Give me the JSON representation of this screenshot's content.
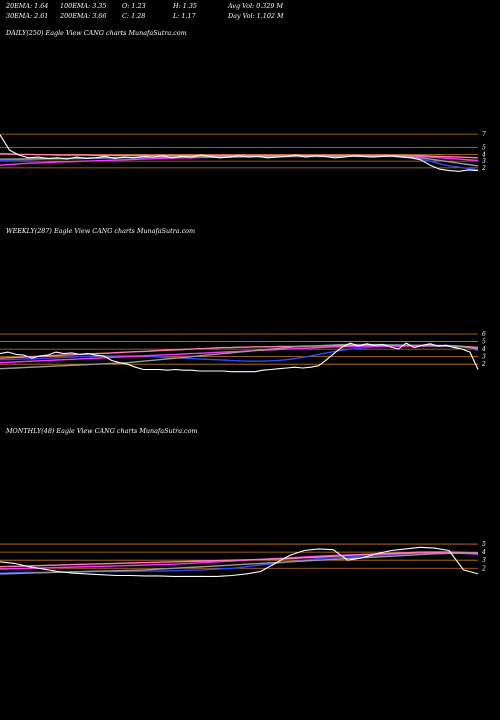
{
  "header": {
    "ema20": "20EMA: 1.64",
    "ema100": "100EMA: 3.35",
    "open": "O: 1.23",
    "high": "H: 1.35",
    "avg_vol": "Avg Vol: 0.329  M",
    "ema30": "30EMA: 2.61",
    "ema200": "200EMA: 3.66",
    "close": "C: 1.28",
    "low": "L: 1.17",
    "day_vol": "Day Vol: 1.102  M"
  },
  "colors": {
    "background": "#000000",
    "price": "#ffffff",
    "ema_blue": "#2b4bff",
    "ema_magenta": "#ff33ff",
    "ema_pink": "#ff7fb0",
    "ema_gray": "#9a9a9a",
    "orange_level": "#c8781e"
  },
  "chart_data": [
    {
      "type": "line",
      "title": "DAILY(250) Eagle   View  CANG charts MunafaSutra.com",
      "ytick_labels": [
        "7",
        "5",
        "4",
        "3",
        "2"
      ],
      "y_ticks": [
        7,
        5,
        4,
        3,
        2
      ],
      "ylim": [
        0.8,
        8.2
      ],
      "levels": [
        7,
        5,
        4,
        3,
        2
      ],
      "series": [
        {
          "key": "price",
          "color": "#ffffff",
          "values": [
            6.9,
            4.6,
            3.9,
            3.5,
            3.6,
            3.4,
            3.5,
            3.3,
            3.6,
            3.4,
            3.5,
            3.7,
            3.4,
            3.6,
            3.5,
            3.7,
            3.6,
            3.8,
            3.5,
            3.7,
            3.6,
            3.9,
            3.7,
            3.5,
            3.6,
            3.8,
            3.6,
            3.7,
            3.5,
            3.6,
            3.7,
            3.9,
            3.6,
            3.8,
            3.7,
            3.5,
            3.6,
            3.8,
            3.7,
            3.6,
            3.7,
            3.8,
            3.6,
            3.5,
            3.2,
            2.4,
            1.8,
            1.6,
            1.5,
            1.7,
            1.6
          ]
        },
        {
          "key": "ema20",
          "color": "#2b4bff",
          "values": [
            3.1,
            3.15,
            3.2,
            3.2,
            3.25,
            3.3,
            3.3,
            3.35,
            3.35,
            3.4,
            3.4,
            3.45,
            3.45,
            3.5,
            3.5,
            3.5,
            3.55,
            3.55,
            3.6,
            3.6,
            3.6,
            3.6,
            3.65,
            3.65,
            3.65,
            3.65,
            3.65,
            3.7,
            3.7,
            3.7,
            3.7,
            3.7,
            3.7,
            3.7,
            3.7,
            3.7,
            3.7,
            3.7,
            3.7,
            3.7,
            3.7,
            3.7,
            3.6,
            3.5,
            3.3,
            3.0,
            2.6,
            2.3,
            2.1,
            1.9,
            1.7
          ]
        },
        {
          "key": "ema_magenta",
          "color": "#ff33ff",
          "values": [
            2.4,
            2.5,
            2.6,
            2.7,
            2.75,
            2.8,
            2.85,
            2.9,
            2.95,
            3.0,
            3.05,
            3.1,
            3.15,
            3.2,
            3.25,
            3.3,
            3.35,
            3.4,
            3.45,
            3.5,
            3.5,
            3.55,
            3.55,
            3.6,
            3.6,
            3.6,
            3.65,
            3.65,
            3.65,
            3.7,
            3.7,
            3.7,
            3.7,
            3.75,
            3.75,
            3.75,
            3.75,
            3.8,
            3.8,
            3.8,
            3.8,
            3.8,
            3.8,
            3.75,
            3.7,
            3.6,
            3.5,
            3.4,
            3.3,
            3.2,
            3.1
          ]
        },
        {
          "key": "ema_pink",
          "color": "#ff7fb0",
          "values": [
            4.1,
            4.05,
            4.0,
            4.0,
            3.95,
            3.95,
            3.9,
            3.9,
            3.9,
            3.9,
            3.85,
            3.85,
            3.85,
            3.85,
            3.85,
            3.85,
            3.85,
            3.85,
            3.85,
            3.85,
            3.85,
            3.85,
            3.85,
            3.85,
            3.85,
            3.85,
            3.85,
            3.85,
            3.85,
            3.85,
            3.85,
            3.85,
            3.85,
            3.85,
            3.85,
            3.85,
            3.85,
            3.85,
            3.85,
            3.85,
            3.85,
            3.85,
            3.85,
            3.8,
            3.8,
            3.75,
            3.7,
            3.65,
            3.6,
            3.55,
            3.5
          ]
        },
        {
          "key": "ema_gray",
          "color": "#9a9a9a",
          "values": [
            3.3,
            3.3,
            3.32,
            3.34,
            3.36,
            3.38,
            3.4,
            3.42,
            3.44,
            3.46,
            3.48,
            3.5,
            3.52,
            3.54,
            3.56,
            3.58,
            3.6,
            3.6,
            3.62,
            3.62,
            3.64,
            3.64,
            3.66,
            3.66,
            3.66,
            3.68,
            3.68,
            3.68,
            3.7,
            3.7,
            3.7,
            3.7,
            3.7,
            3.7,
            3.7,
            3.7,
            3.72,
            3.72,
            3.72,
            3.72,
            3.72,
            3.7,
            3.65,
            3.6,
            3.5,
            3.3,
            3.1,
            2.9,
            2.7,
            2.5,
            2.3
          ]
        }
      ]
    },
    {
      "type": "line",
      "title": "WEEKLY(287) Eagle   View  CANG charts MunafaSutra.com",
      "ytick_labels": [
        "6",
        "5",
        "4",
        "3",
        "2"
      ],
      "y_ticks": [
        6,
        5,
        4,
        3,
        2
      ],
      "ylim": [
        0.3,
        6.8
      ],
      "levels": [
        6,
        5,
        4,
        3,
        2
      ],
      "series": [
        {
          "key": "price",
          "color": "#ffffff",
          "values": [
            3.4,
            3.6,
            3.3,
            3.2,
            2.8,
            3.1,
            3.2,
            3.6,
            3.4,
            3.5,
            3.3,
            3.4,
            3.2,
            3.1,
            2.5,
            2.2,
            2.0,
            1.6,
            1.3,
            1.3,
            1.3,
            1.2,
            1.3,
            1.2,
            1.2,
            1.1,
            1.1,
            1.1,
            1.1,
            1.0,
            1.0,
            1.0,
            1.0,
            1.2,
            1.3,
            1.4,
            1.5,
            1.6,
            1.5,
            1.6,
            1.8,
            2.6,
            3.5,
            4.3,
            4.8,
            4.4,
            4.7,
            4.5,
            4.6,
            4.3,
            4.0,
            4.8,
            4.2,
            4.5,
            4.7,
            4.4,
            4.5,
            4.2,
            4.0,
            3.6,
            1.3
          ]
        },
        {
          "key": "ema20",
          "color": "#2b4bff",
          "values": [
            2.6,
            2.6,
            2.65,
            2.7,
            2.7,
            2.75,
            2.8,
            2.85,
            2.9,
            2.95,
            3.0,
            3.05,
            3.1,
            3.1,
            3.1,
            3.1,
            3.1,
            3.1,
            3.1,
            3.0,
            2.95,
            2.9,
            2.85,
            2.8,
            2.75,
            2.7,
            2.65,
            2.6,
            2.55,
            2.5,
            2.45,
            2.4,
            2.4,
            2.4,
            2.45,
            2.5,
            2.6,
            2.75,
            2.9,
            3.1,
            3.3,
            3.5,
            3.7,
            3.85,
            4.0,
            4.1,
            4.2,
            4.3,
            4.35,
            4.4,
            4.4,
            4.45,
            4.45,
            4.5,
            4.5,
            4.5,
            4.5,
            4.45,
            4.4,
            4.2,
            3.8
          ]
        },
        {
          "key": "ema_magenta",
          "color": "#ff33ff",
          "values": [
            2.2,
            2.25,
            2.3,
            2.35,
            2.4,
            2.45,
            2.5,
            2.55,
            2.6,
            2.65,
            2.7,
            2.75,
            2.8,
            2.85,
            2.9,
            2.95,
            3.0,
            3.05,
            3.1,
            3.15,
            3.2,
            3.25,
            3.3,
            3.35,
            3.4,
            3.45,
            3.5,
            3.55,
            3.6,
            3.65,
            3.7,
            3.75,
            3.8,
            3.85,
            3.9,
            3.95,
            4.0,
            4.05,
            4.1,
            4.15,
            4.2,
            4.25,
            4.3,
            4.3,
            4.35,
            4.35,
            4.4,
            4.4,
            4.4,
            4.4,
            4.4,
            4.4,
            4.4,
            4.4,
            4.4,
            4.4,
            4.4,
            4.35,
            4.3,
            4.2,
            4.0
          ]
        },
        {
          "key": "ema_pink",
          "color": "#ff7fb0",
          "values": [
            2.8,
            2.85,
            2.9,
            2.95,
            3.0,
            3.05,
            3.1,
            3.15,
            3.2,
            3.25,
            3.3,
            3.35,
            3.4,
            3.45,
            3.5,
            3.55,
            3.6,
            3.65,
            3.7,
            3.75,
            3.8,
            3.85,
            3.9,
            3.95,
            4.0,
            4.05,
            4.1,
            4.15,
            4.2,
            4.2,
            4.25,
            4.25,
            4.3,
            4.3,
            4.3,
            4.35,
            4.35,
            4.35,
            4.4,
            4.4,
            4.4,
            4.45,
            4.45,
            4.45,
            4.5,
            4.5,
            4.5,
            4.5,
            4.5,
            4.5,
            4.5,
            4.5,
            4.5,
            4.5,
            4.5,
            4.45,
            4.45,
            4.4,
            4.35,
            4.3,
            4.2
          ]
        },
        {
          "key": "ema_gray",
          "color": "#9a9a9a",
          "values": [
            1.4,
            1.45,
            1.5,
            1.55,
            1.6,
            1.65,
            1.7,
            1.75,
            1.8,
            1.85,
            1.9,
            1.95,
            2.0,
            2.05,
            2.1,
            2.15,
            2.2,
            2.3,
            2.4,
            2.5,
            2.6,
            2.7,
            2.8,
            2.9,
            3.0,
            3.1,
            3.2,
            3.3,
            3.4,
            3.5,
            3.6,
            3.7,
            3.8,
            3.9,
            4.0,
            4.1,
            4.2,
            4.3,
            4.35,
            4.4,
            4.45,
            4.5,
            4.55,
            4.6,
            4.6,
            4.6,
            4.6,
            4.6,
            4.6,
            4.55,
            4.55,
            4.5,
            4.5,
            4.45,
            4.45,
            4.4,
            4.4,
            4.35,
            4.3,
            4.2,
            4.0
          ]
        }
      ]
    },
    {
      "type": "line",
      "title": "MONTHLY(48) Eagle   View  CANG charts MunafaSutra.com",
      "ytick_labels": [
        "5",
        "4",
        "3",
        "2"
      ],
      "y_ticks": [
        5,
        4,
        3,
        2
      ],
      "ylim": [
        0.3,
        6.0
      ],
      "levels": [
        5,
        4,
        3,
        2
      ],
      "series": [
        {
          "key": "price",
          "color": "#ffffff",
          "values": [
            2.8,
            2.6,
            2.2,
            1.9,
            1.6,
            1.4,
            1.3,
            1.2,
            1.1,
            1.1,
            1.05,
            1.05,
            1.0,
            1.0,
            1.0,
            1.0,
            1.1,
            1.3,
            1.6,
            2.6,
            3.6,
            4.2,
            4.4,
            4.3,
            3.0,
            3.3,
            3.8,
            4.2,
            4.4,
            4.6,
            4.5,
            4.2,
            1.8,
            1.3
          ]
        },
        {
          "key": "ema20",
          "color": "#2b4bff",
          "values": [
            1.4,
            1.45,
            1.5,
            1.5,
            1.55,
            1.55,
            1.6,
            1.6,
            1.6,
            1.6,
            1.65,
            1.65,
            1.7,
            1.75,
            1.8,
            1.9,
            2.0,
            2.2,
            2.4,
            2.6,
            2.8,
            3.0,
            3.2,
            3.3,
            3.4,
            3.5,
            3.6,
            3.7,
            3.8,
            3.9,
            4.0,
            4.0,
            3.9,
            3.7
          ]
        },
        {
          "key": "ema_magenta",
          "color": "#ff33ff",
          "values": [
            1.9,
            1.95,
            2.0,
            2.05,
            2.1,
            2.15,
            2.2,
            2.25,
            2.3,
            2.35,
            2.4,
            2.45,
            2.5,
            2.6,
            2.7,
            2.8,
            2.9,
            3.0,
            3.1,
            3.2,
            3.3,
            3.4,
            3.5,
            3.6,
            3.65,
            3.7,
            3.75,
            3.8,
            3.85,
            3.9,
            3.9,
            3.9,
            3.85,
            3.8
          ]
        },
        {
          "key": "ema_pink",
          "color": "#ff7fb0",
          "values": [
            2.2,
            2.25,
            2.3,
            2.35,
            2.4,
            2.45,
            2.5,
            2.55,
            2.6,
            2.65,
            2.7,
            2.75,
            2.8,
            2.85,
            2.9,
            2.95,
            3.0,
            3.05,
            3.1,
            3.15,
            3.2,
            3.3,
            3.4,
            3.5,
            3.6,
            3.7,
            3.8,
            3.85,
            3.9,
            4.0,
            4.0,
            4.0,
            3.95,
            3.9
          ]
        },
        {
          "key": "ema_gray",
          "color": "#9a9a9a",
          "values": [
            1.3,
            1.35,
            1.4,
            1.45,
            1.5,
            1.55,
            1.6,
            1.65,
            1.7,
            1.75,
            1.8,
            1.9,
            2.0,
            2.1,
            2.2,
            2.3,
            2.4,
            2.5,
            2.6,
            2.7,
            2.8,
            2.9,
            3.0,
            3.1,
            3.2,
            3.3,
            3.4,
            3.5,
            3.6,
            3.7,
            3.8,
            3.85,
            3.9,
            3.9
          ]
        }
      ]
    }
  ]
}
